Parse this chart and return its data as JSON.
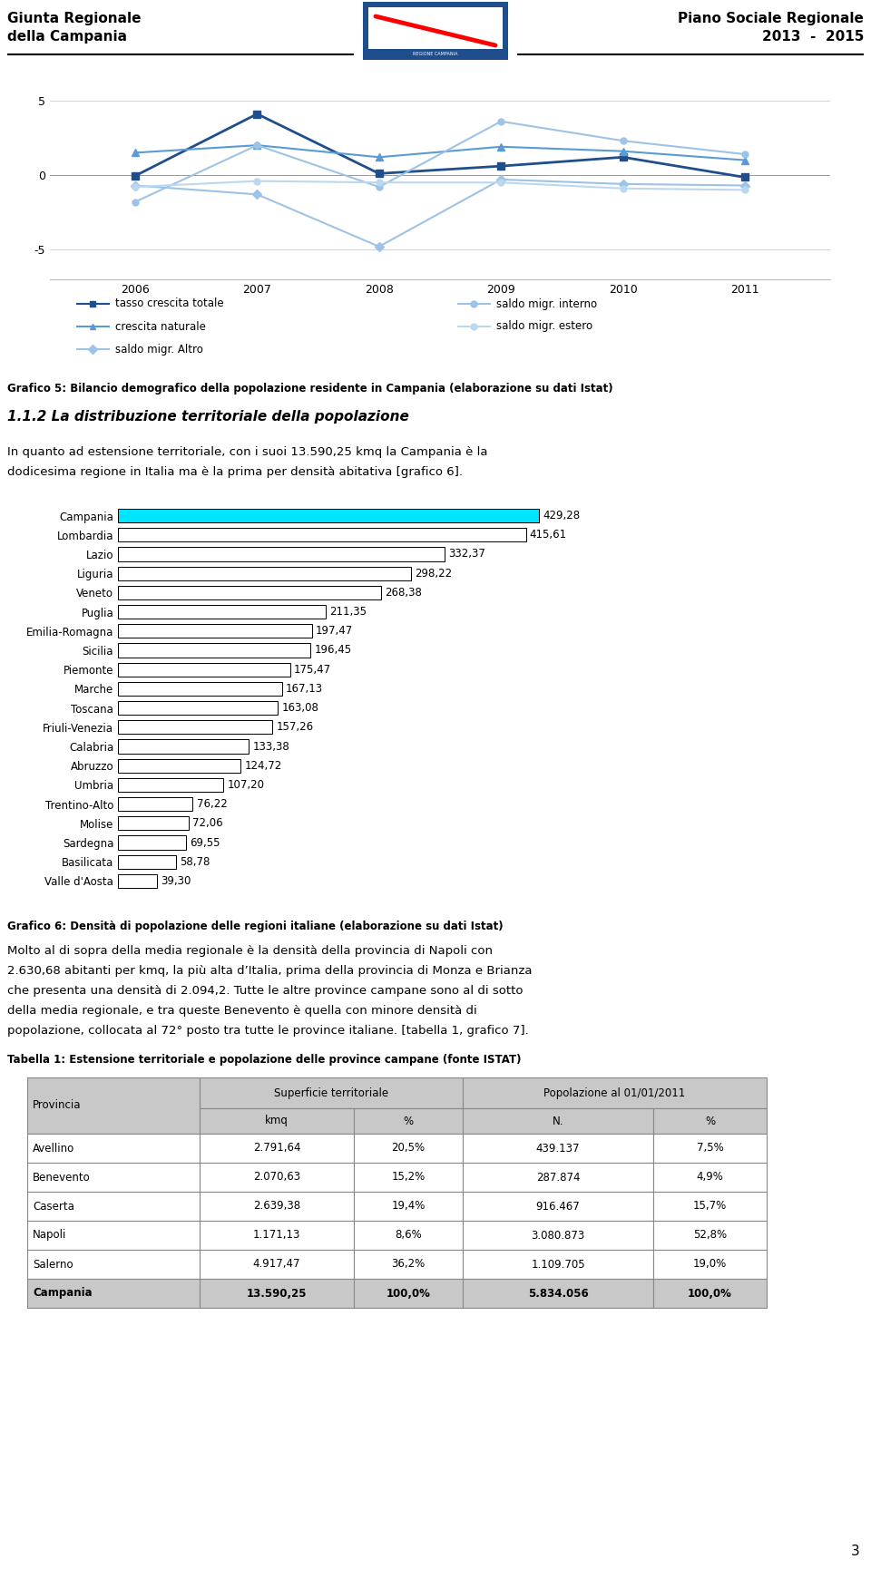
{
  "header_left_line1": "Giunta Regionale",
  "header_left_line2": "della Campania",
  "header_right_line1": "Piano Sociale Regionale",
  "header_right_line2": "2013  -  2015",
  "line_years": [
    2006,
    2007,
    2008,
    2009,
    2010,
    2011
  ],
  "line_series": [
    {
      "name": "tasso crescita totale",
      "values": [
        -0.05,
        4.1,
        0.1,
        0.6,
        1.2,
        -0.15
      ],
      "color": "#1F4E8C",
      "marker": "s",
      "linewidth": 2.0,
      "markersize": 6
    },
    {
      "name": "crescita naturale",
      "values": [
        1.5,
        2.0,
        1.2,
        1.9,
        1.6,
        1.0
      ],
      "color": "#5B9BD5",
      "marker": "^",
      "linewidth": 1.5,
      "markersize": 6
    },
    {
      "name": "saldo migr. Altro",
      "values": [
        -0.7,
        -1.3,
        -4.8,
        -0.3,
        -0.6,
        -0.7
      ],
      "color": "#9DC3E6",
      "marker": "D",
      "linewidth": 1.5,
      "markersize": 5
    },
    {
      "name": "saldo migr. interno",
      "values": [
        -1.8,
        2.0,
        -0.8,
        3.6,
        2.3,
        1.4
      ],
      "color": "#9DC3E6",
      "marker": "o",
      "linewidth": 1.5,
      "markersize": 5
    },
    {
      "name": "saldo migr. estero",
      "values": [
        -0.8,
        -0.4,
        -0.5,
        -0.5,
        -0.9,
        -1.0
      ],
      "color": "#BDD7EE",
      "marker": "o",
      "linewidth": 1.5,
      "markersize": 5
    }
  ],
  "line_ylim": [
    -7,
    7
  ],
  "line_yticks": [
    -5,
    0,
    5
  ],
  "line_caption": "Grafico 5: Bilancio demografico della popolazione residente in Campania (elaborazione su dati Istat)",
  "section_title": "1.1.2 La distribuzione territoriale della popolazione",
  "section_text_line1": "In quanto ad estensione territoriale, con i suoi 13.590,25 kmq la Campania è la",
  "section_text_line2": "dodicesima regione in Italia ma è la prima per densità abitativa [grafico 6].",
  "bar_categories": [
    "Campania",
    "Lombardia",
    "Lazio",
    "Liguria",
    "Veneto",
    "Puglia",
    "Emilia-Romagna",
    "Sicilia",
    "Piemonte",
    "Marche",
    "Toscana",
    "Friuli-Venezia",
    "Calabria",
    "Abruzzo",
    "Umbria",
    "Trentino-Alto",
    "Molise",
    "Sardegna",
    "Basilicata",
    "Valle d'Aosta"
  ],
  "bar_values": [
    429.28,
    415.61,
    332.37,
    298.22,
    268.38,
    211.35,
    197.47,
    196.45,
    175.47,
    167.13,
    163.08,
    157.26,
    133.38,
    124.72,
    107.2,
    76.22,
    72.06,
    69.55,
    58.78,
    39.3
  ],
  "bar_labels": [
    "429,28",
    "415,61",
    "332,37",
    "298,22",
    "268,38",
    "211,35",
    "197,47",
    "196,45",
    "175,47",
    "167,13",
    "163,08",
    "157,26",
    "133,38",
    "124,72",
    "107,20",
    "76,22",
    "72,06",
    "69,55",
    "58,78",
    "39,30"
  ],
  "bar_color_campania": "#00E5FF",
  "bar_color_other": "#FFFFFF",
  "bar_edge": "#000000",
  "bar_caption": "Grafico 6: Densità di popolazione delle regioni italiane (elaborazione su dati Istat)",
  "body_lines": [
    "Molto al di sopra della media regionale è la densità della provincia di Napoli con",
    "2.630,68 abitanti per kmq, la più alta d’Italia, prima della provincia di Monza e Brianza",
    "che presenta una densità di 2.094,2. Tutte le altre province campane sono al di sotto",
    "della media regionale, e tra queste Benevento è quella con minore densità di",
    "popolazione, collocata al 72° posto tra tutte le province italiane. [tabella 1, grafico 7]."
  ],
  "table_title": "Tabella 1: Estensione territoriale e popolazione delle province campane (fonte ISTAT)",
  "table_col_header1": "Superficie territoriale",
  "table_col_header2": "Popolazione al 01/01/2011",
  "table_subheaders": [
    "Provincia",
    "kmq",
    "%",
    "N.",
    "%"
  ],
  "table_rows": [
    [
      "Avellino",
      "2.791,64",
      "20,5%",
      "439.137",
      "7,5%"
    ],
    [
      "Benevento",
      "2.070,63",
      "15,2%",
      "287.874",
      "4,9%"
    ],
    [
      "Caserta",
      "2.639,38",
      "19,4%",
      "916.467",
      "15,7%"
    ],
    [
      "Napoli",
      "1.171,13",
      "8,6%",
      "3.080.873",
      "52,8%"
    ],
    [
      "Salerno",
      "4.917,47",
      "36,2%",
      "1.109.705",
      "19,0%"
    ],
    [
      "Campania",
      "13.590,25",
      "100,0%",
      "5.834.056",
      "100,0%"
    ]
  ],
  "table_header_bg": "#C8C8C8",
  "table_last_row_bg": "#C8C8C8",
  "page_number": "3",
  "fig_w": 9.6,
  "fig_h": 17.3,
  "dpi": 100
}
